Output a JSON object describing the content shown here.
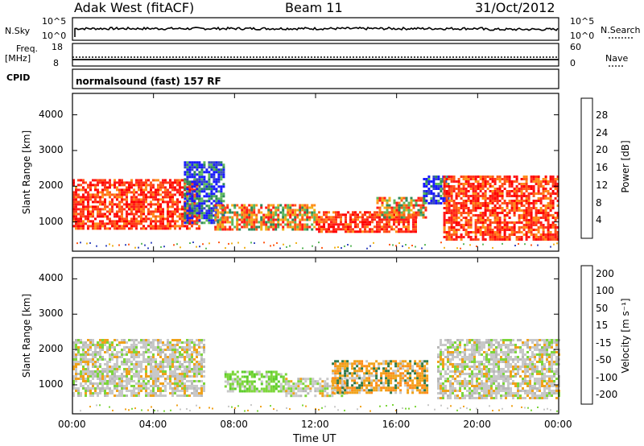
{
  "header": {
    "station": "Adak West (fitACF)",
    "beam": "Beam 11",
    "date": "31/Oct/2012"
  },
  "strips": {
    "nsky_label": "N.Sky",
    "nsky_ticks": [
      "10^5",
      "10^0"
    ],
    "nsearch_label": "N.Search",
    "nsearch_ticks": [
      "10^5",
      "10^0"
    ],
    "freq_label_1": "Freq.",
    "freq_label_2": "[MHz]",
    "freq_ticks": [
      "18",
      "8"
    ],
    "nave_label": "Nave",
    "nave_ticks": [
      "60",
      "0"
    ],
    "cpid_label": "CPID",
    "cpid_text": "normalsound (fast) 157 RF"
  },
  "chart_data": [
    {
      "type": "heatmap",
      "title": "",
      "xlabel": "Time UT",
      "ylabel": "Slant Range [km]",
      "x_ticks": [
        "00:00",
        "04:00",
        "08:00",
        "12:00",
        "16:00",
        "20:00",
        "00:00"
      ],
      "xlim": [
        0,
        24
      ],
      "y_ticks": [
        "1000",
        "2000",
        "3000",
        "4000"
      ],
      "ylim": [
        180,
        4600
      ],
      "colorbar": {
        "label": "Power [dB]",
        "ticks": [
          "4",
          "8",
          "12",
          "16",
          "20",
          "24",
          "28"
        ],
        "colors": [
          "#1a1aff",
          "#3a4cc0",
          "#2f8a5a",
          "#5cb85c",
          "#f0b21a",
          "#ff8c1a",
          "#ff5a1a",
          "#ff1a1a",
          "#ff0000"
        ]
      },
      "regions": [
        {
          "t0": 0.0,
          "t1": 6.2,
          "r0": 800,
          "r1": 2200,
          "level": "high"
        },
        {
          "t0": 5.5,
          "t1": 7.5,
          "r0": 1000,
          "r1": 2700,
          "level": "low"
        },
        {
          "t0": 7.0,
          "t1": 12.0,
          "r0": 800,
          "r1": 1500,
          "level": "mixed"
        },
        {
          "t0": 12.0,
          "t1": 17.0,
          "r0": 700,
          "r1": 1300,
          "level": "high"
        },
        {
          "t0": 15.0,
          "t1": 17.5,
          "r0": 1100,
          "r1": 1700,
          "level": "mixed"
        },
        {
          "t0": 17.3,
          "t1": 18.5,
          "r0": 1500,
          "r1": 2300,
          "level": "low"
        },
        {
          "t0": 18.3,
          "t1": 24.0,
          "r0": 500,
          "r1": 2300,
          "level": "high"
        }
      ]
    },
    {
      "type": "heatmap",
      "title": "",
      "xlabel": "Time UT",
      "ylabel": "Slant Range [km]",
      "x_ticks": [
        "00:00",
        "04:00",
        "08:00",
        "12:00",
        "16:00",
        "20:00",
        "00:00"
      ],
      "xlim": [
        0,
        24
      ],
      "y_ticks": [
        "1000",
        "2000",
        "3000",
        "4000"
      ],
      "ylim": [
        180,
        4600
      ],
      "colorbar": {
        "label": "Velocity [m s⁻¹]",
        "ticks": [
          "200",
          "100",
          "50",
          "15",
          "-15",
          "-50",
          "-100",
          "-200"
        ],
        "colors": [
          "#2a2acc",
          "#2f7a4a",
          "#4caf50",
          "#7cd63a",
          "#c8c8c8",
          "#f0a21a",
          "#ff7a1a",
          "#ff3a1a",
          "#ff0000"
        ]
      },
      "regions": [
        {
          "t0": 0.0,
          "t1": 6.5,
          "r0": 700,
          "r1": 2300,
          "level": "grey"
        },
        {
          "t0": 7.5,
          "t1": 10.5,
          "r0": 800,
          "r1": 1400,
          "level": "green"
        },
        {
          "t0": 10.5,
          "t1": 13.5,
          "r0": 700,
          "r1": 1200,
          "level": "grey"
        },
        {
          "t0": 12.8,
          "t1": 17.5,
          "r0": 800,
          "r1": 1700,
          "level": "orange"
        },
        {
          "t0": 18.0,
          "t1": 24.0,
          "r0": 600,
          "r1": 2300,
          "level": "grey"
        }
      ]
    }
  ]
}
